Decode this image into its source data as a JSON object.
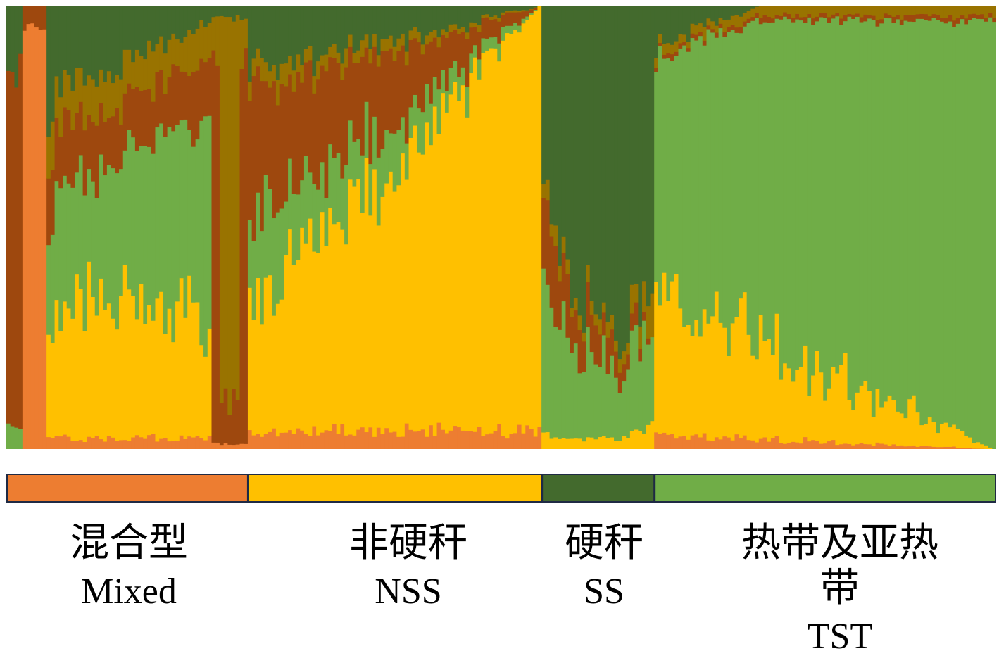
{
  "chart_data": {
    "type": "bar",
    "description_type": "stacked-100-percent ancestry (STRUCTURE) plot, K=6",
    "y_range": [
      0,
      1
    ],
    "cluster_colors": {
      "mixed_orange": "#ed7d31",
      "nss_yellow": "#ffc000",
      "ss_darkgreen": "#436a2d",
      "tst_green": "#70ad47",
      "brown": "#9e480e",
      "olive": "#997300"
    },
    "individuals": 246,
    "groups": [
      {
        "key": "Mixed",
        "label_zh": "混合型",
        "label_en": "Mixed",
        "color": "#ed7d31",
        "start": 0,
        "end": 60
      },
      {
        "key": "NSS",
        "label_zh": "非硬秆",
        "label_en": "NSS",
        "color": "#ffc000",
        "start": 60,
        "end": 133
      },
      {
        "key": "SS",
        "label_zh": "硬秆",
        "label_en": "SS",
        "color": "#436a2d",
        "start": 133,
        "end": 161
      },
      {
        "key": "TST",
        "label_zh": "热带及亚热带",
        "label_en": "TST",
        "color": "#70ad47",
        "start": 161,
        "end": 246
      }
    ],
    "group_proportions_mean": {
      "Mixed": {
        "mixed_orange": 0.2,
        "nss_yellow": 0.22,
        "ss_darkgreen": 0.12,
        "tst_green": 0.2,
        "brown": 0.16,
        "olive": 0.1
      },
      "NSS": {
        "mixed_orange": 0.03,
        "nss_yellow": 0.6,
        "ss_darkgreen": 0.05,
        "tst_green": 0.12,
        "brown": 0.14,
        "olive": 0.06
      },
      "SS": {
        "mixed_orange": 0.0,
        "nss_yellow": 0.01,
        "ss_darkgreen": 0.72,
        "tst_green": 0.16,
        "brown": 0.07,
        "olive": 0.04
      },
      "TST": {
        "mixed_orange": 0.01,
        "nss_yellow": 0.12,
        "ss_darkgreen": 0.05,
        "tst_green": 0.8,
        "brown": 0.01,
        "olive": 0.01
      }
    }
  }
}
